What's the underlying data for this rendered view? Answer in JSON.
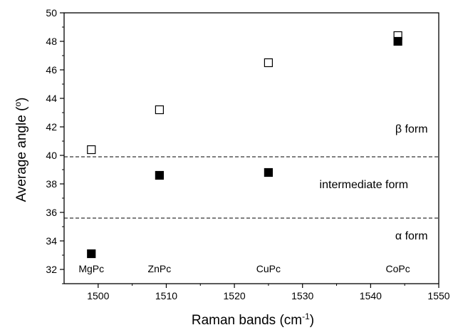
{
  "chart_data": {
    "type": "scatter",
    "title": "",
    "xlabel": "Raman bands (cm",
    "xlabel_sup": "-1",
    "xlabel_close": ")",
    "ylabel": "Average angle (",
    "ylabel_sup": "o",
    "ylabel_close": ")",
    "xlim": [
      1495,
      1550
    ],
    "ylim": [
      31,
      50
    ],
    "xticks": [
      1500,
      1510,
      1520,
      1530,
      1540,
      1550
    ],
    "yticks": [
      32,
      34,
      36,
      38,
      40,
      42,
      44,
      46,
      48,
      50
    ],
    "grid": false,
    "series": [
      {
        "marker": "open-square",
        "x": [
          1499,
          1509,
          1525,
          1544
        ],
        "y": [
          40.4,
          43.2,
          46.5,
          48.4
        ]
      },
      {
        "marker": "filled-square",
        "x": [
          1499,
          1509,
          1525,
          1544
        ],
        "y": [
          33.1,
          38.6,
          38.8,
          48.0
        ]
      }
    ],
    "reference_lines": [
      {
        "axis": "y",
        "value": 39.9,
        "style": "dashed"
      },
      {
        "axis": "y",
        "value": 35.6,
        "style": "dashed"
      }
    ],
    "annotations": [
      {
        "text": "β form",
        "x": 1546,
        "y": 41.6
      },
      {
        "text": "intermediate form",
        "x": 1539,
        "y": 37.7
      },
      {
        "text": "α form",
        "x": 1546,
        "y": 34.1
      }
    ],
    "category_labels": [
      {
        "text": "MgPc",
        "x": 1499,
        "y": 31.8
      },
      {
        "text": "ZnPc",
        "x": 1509,
        "y": 31.8
      },
      {
        "text": "CuPc",
        "x": 1525,
        "y": 31.8
      },
      {
        "text": "CoPc",
        "x": 1544,
        "y": 31.8
      }
    ],
    "colors": {
      "axis": "#000000",
      "marker": "#000000",
      "background": "#ffffff"
    }
  }
}
